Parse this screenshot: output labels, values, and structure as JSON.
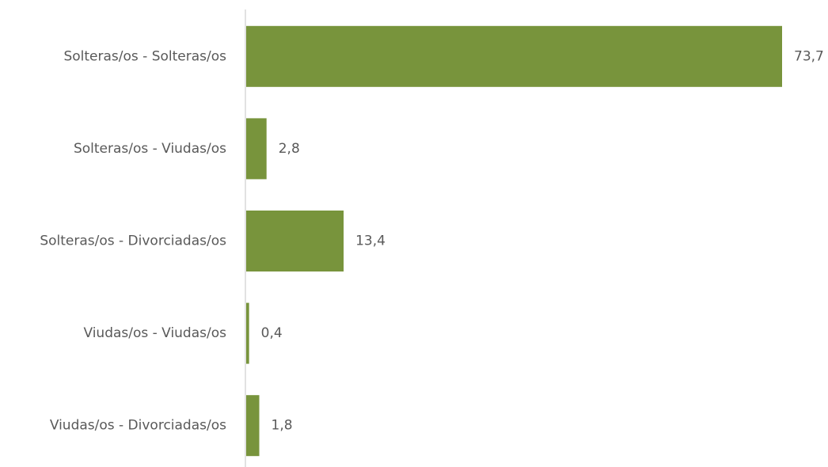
{
  "chart_data": {
    "type": "bar",
    "orientation": "horizontal",
    "categories": [
      "Solteras/os - Solteras/os",
      "Solteras/os - Viudas/os",
      "Solteras/os - Divorciadas/os",
      "Viudas/os - Viudas/os",
      "Viudas/os - Divorciadas/os"
    ],
    "values": [
      73.7,
      2.8,
      13.4,
      0.4,
      1.8
    ],
    "value_labels": [
      "73,7",
      "2,8",
      "13,4",
      "0,4",
      "1,8"
    ],
    "title": "",
    "xlabel": "",
    "ylabel": "",
    "xlim": [
      0,
      73.7
    ],
    "grid": false,
    "legend": "none",
    "colors": {
      "bar": "#78943c",
      "axis": "#d9d9d9",
      "text": "#595959"
    }
  }
}
